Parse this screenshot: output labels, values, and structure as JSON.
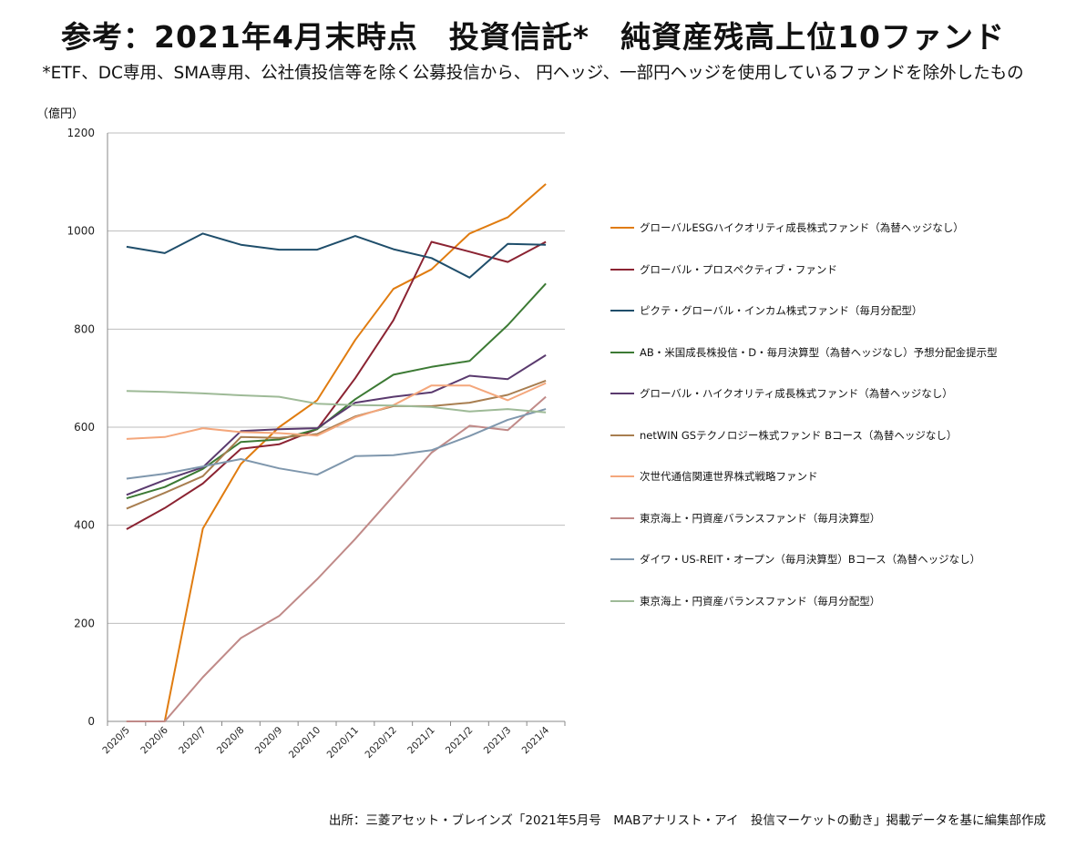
{
  "title": "参考：2021年4月末時点　投資信託*　純資産残高上位10ファンド",
  "subtitle": "*ETF、DC専用、SMA専用、公社債投信等を除く公募投信から、 円ヘッジ、一部円ヘッジを使用しているファンドを除外したもの",
  "source": "出所：三菱アセット・ブレインズ「2021年5月号　MABアナリスト・アイ　投信マーケットの動き」掲載データを基に編集部作成",
  "chart_data": {
    "type": "line",
    "title": "",
    "ylabel": "（億円）",
    "xlabel": "",
    "ylim": [
      0,
      1200
    ],
    "yticks": [
      0,
      200,
      400,
      600,
      800,
      1000,
      1200
    ],
    "grid": true,
    "legend_position": "right",
    "x": [
      "2020/5",
      "2020/6",
      "2020/7",
      "2020/8",
      "2020/9",
      "2020/10",
      "2020/11",
      "2020/12",
      "2021/1",
      "2021/2",
      "2021/3",
      "2021/4"
    ],
    "series": [
      {
        "name": "グローバルESGハイクオリティ成長株式ファンド（為替ヘッジなし）",
        "color": "#E07C10",
        "values": [
          0,
          0,
          393,
          525,
          600,
          655,
          778,
          882,
          922,
          995,
          1028,
          1096
        ]
      },
      {
        "name": "グローバル・プロスペクティブ・ファンド",
        "color": "#8B2332",
        "values": [
          392,
          435,
          485,
          556,
          565,
          596,
          700,
          818,
          978,
          958,
          937,
          978
        ]
      },
      {
        "name": "ピクテ・グローバル・インカム株式ファンド（毎月分配型）",
        "color": "#1F4E6B",
        "values": [
          968,
          955,
          995,
          972,
          962,
          962,
          990,
          963,
          945,
          905,
          974,
          972
        ]
      },
      {
        "name": "AB・米国成長株投信・D・毎月決算型（為替ヘッジなし）予想分配金提示型",
        "color": "#3C7A34",
        "values": [
          455,
          478,
          515,
          570,
          575,
          596,
          657,
          707,
          723,
          735,
          808,
          893
        ]
      },
      {
        "name": "グローバル・ハイクオリティ成長株式ファンド（為替ヘッジなし）",
        "color": "#5A3A6E",
        "values": [
          462,
          492,
          518,
          592,
          596,
          598,
          650,
          662,
          671,
          705,
          698,
          747
        ]
      },
      {
        "name": "netWIN GSテクノロジー株式ファンド Bコース（為替ヘッジなし）",
        "color": "#A87E50",
        "values": [
          434,
          466,
          500,
          580,
          578,
          586,
          622,
          643,
          643,
          650,
          666,
          695
        ]
      },
      {
        "name": "次世代通信関連世界株式戦略ファンド",
        "color": "#F4A77C",
        "values": [
          576,
          580,
          598,
          590,
          588,
          583,
          620,
          645,
          685,
          685,
          655,
          690
        ]
      },
      {
        "name": "東京海上・円資産バランスファンド（毎月決算型）",
        "color": "#C08A88",
        "values": [
          0,
          0,
          90,
          170,
          215,
          290,
          372,
          460,
          548,
          603,
          594,
          662
        ]
      },
      {
        "name": "ダイワ・US-REIT・オープン（毎月決算型）Bコース（為替ヘッジなし）",
        "color": "#7F97AD",
        "values": [
          495,
          505,
          520,
          535,
          516,
          503,
          541,
          543,
          553,
          582,
          615,
          637
        ]
      },
      {
        "name": "東京海上・円資産バランスファンド（毎月分配型）",
        "color": "#9EBA97",
        "values": [
          674,
          672,
          669,
          665,
          662,
          648,
          645,
          644,
          641,
          632,
          637,
          630
        ]
      }
    ]
  }
}
